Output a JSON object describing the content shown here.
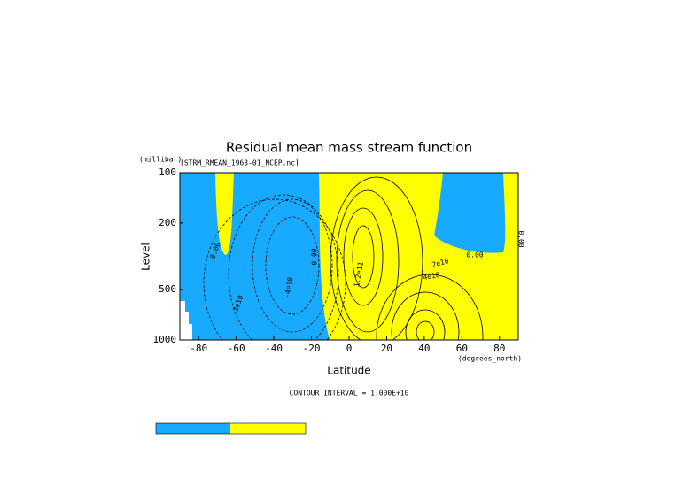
{
  "chart_data": {
    "type": "contour",
    "title": "Residual mean mass stream function",
    "source": "[STRM_RMEAN_1963-01_NCEP.nc]",
    "y_unit": "(millibar)",
    "y_label": "Level",
    "x_label": "Latitude",
    "x_unit": "(degrees_north)",
    "footnote": "CONTOUR INTERVAL = 1.000E+10",
    "xlim": [
      -90,
      90
    ],
    "xticks": [
      -80,
      -60,
      -40,
      -20,
      0,
      20,
      40,
      60,
      80
    ],
    "ylim": [
      1000,
      100
    ],
    "yticks": [
      100,
      200,
      500,
      1000
    ],
    "yscale": "log",
    "fill_colors": [
      "#18aaff",
      "#ffff00"
    ],
    "annotations": [
      "0.00",
      "-4e10",
      "-2e10",
      "0.00",
      "2e10",
      "4e10",
      "0.00",
      "0.00",
      "1.2e11"
    ]
  }
}
